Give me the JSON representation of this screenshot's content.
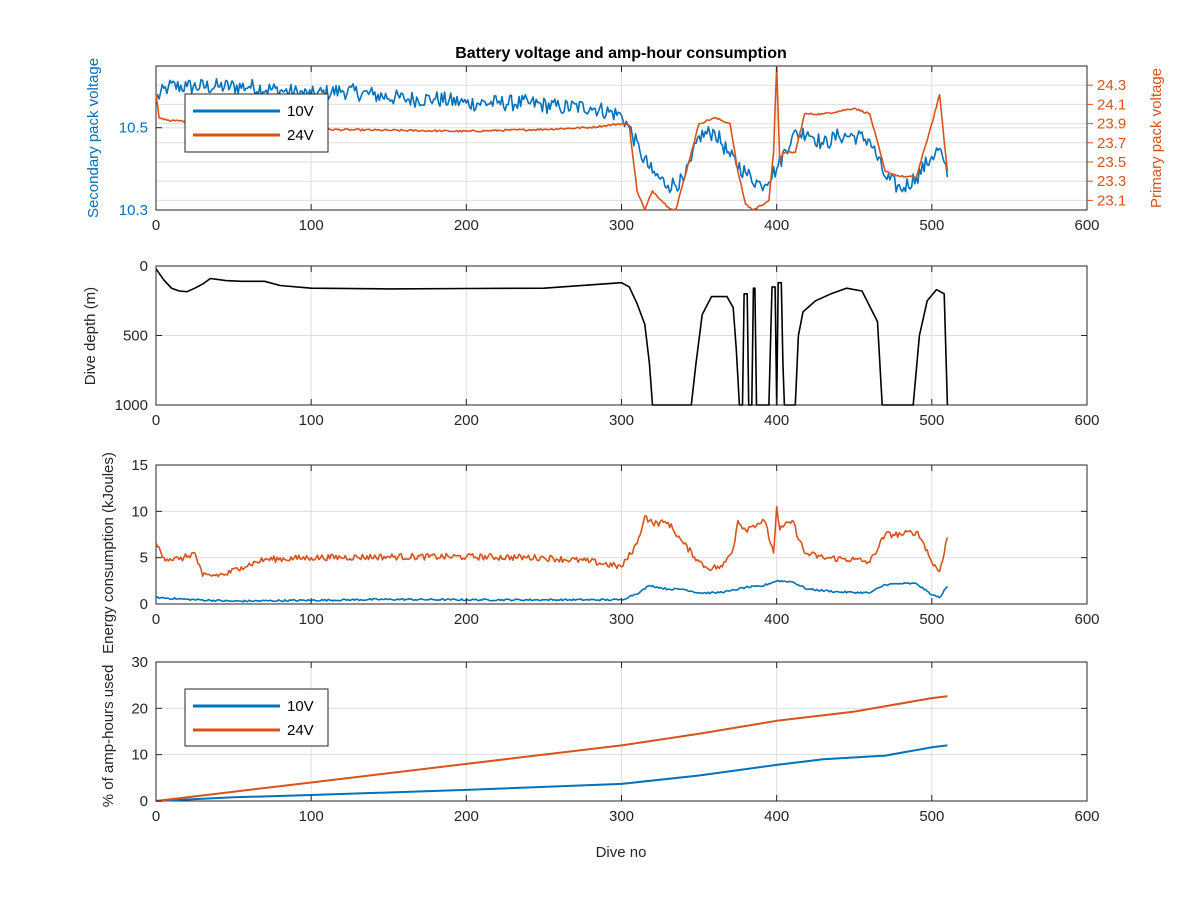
{
  "figure_title": "Battery voltage and amp-hour consumption",
  "colors": {
    "blue": "#0072bd",
    "orange": "#d95319",
    "black": "#000000",
    "grid": "#dfdfdf",
    "axis": "#262626"
  },
  "chart_data": [
    {
      "id": "voltage",
      "type": "line",
      "title": "Battery voltage and amp-hour consumption",
      "xlim": [
        0,
        600
      ],
      "xticks": [
        0,
        100,
        200,
        300,
        400,
        500,
        600
      ],
      "xlabel": "",
      "ylabel_left": "Secondary pack voltage",
      "ylim_left": [
        10.3,
        10.65
      ],
      "yticks_left": [
        10.3,
        10.5
      ],
      "ylabel_right": "Primary pack voltage",
      "ylim_right": [
        23.0,
        24.5
      ],
      "yticks_right": [
        23.1,
        23.3,
        23.5,
        23.7,
        23.9,
        24.1,
        24.3
      ],
      "grid": true,
      "legend": {
        "position": "top-left",
        "entries": [
          "10V",
          "24V"
        ]
      },
      "series": [
        {
          "name": "10V",
          "axis": "left",
          "color": "#0072bd",
          "points": [
            [
              0,
              10.57
            ],
            [
              8,
              10.6
            ],
            [
              20,
              10.6
            ],
            [
              40,
              10.6
            ],
            [
              60,
              10.6
            ],
            [
              80,
              10.59
            ],
            [
              100,
              10.58
            ],
            [
              120,
              10.59
            ],
            [
              140,
              10.58
            ],
            [
              160,
              10.57
            ],
            [
              180,
              10.57
            ],
            [
              200,
              10.56
            ],
            [
              220,
              10.56
            ],
            [
              240,
              10.56
            ],
            [
              260,
              10.55
            ],
            [
              280,
              10.55
            ],
            [
              300,
              10.53
            ],
            [
              305,
              10.5
            ],
            [
              312,
              10.44
            ],
            [
              320,
              10.39
            ],
            [
              330,
              10.36
            ],
            [
              340,
              10.37
            ],
            [
              345,
              10.42
            ],
            [
              350,
              10.48
            ],
            [
              360,
              10.49
            ],
            [
              370,
              10.43
            ],
            [
              380,
              10.39
            ],
            [
              390,
              10.36
            ],
            [
              400,
              10.4
            ],
            [
              410,
              10.48
            ],
            [
              420,
              10.49
            ],
            [
              430,
              10.46
            ],
            [
              440,
              10.48
            ],
            [
              450,
              10.48
            ],
            [
              460,
              10.47
            ],
            [
              470,
              10.38
            ],
            [
              480,
              10.35
            ],
            [
              490,
              10.38
            ],
            [
              500,
              10.43
            ],
            [
              505,
              10.45
            ],
            [
              510,
              10.38
            ]
          ],
          "noise": 0.02
        },
        {
          "name": "24V",
          "axis": "right",
          "color": "#d95319",
          "points": [
            [
              0,
              24.2
            ],
            [
              2,
              23.96
            ],
            [
              10,
              23.93
            ],
            [
              30,
              23.92
            ],
            [
              60,
              23.9
            ],
            [
              80,
              23.86
            ],
            [
              100,
              23.84
            ],
            [
              150,
              23.83
            ],
            [
              200,
              23.82
            ],
            [
              250,
              23.84
            ],
            [
              280,
              23.86
            ],
            [
              300,
              23.9
            ],
            [
              305,
              23.88
            ],
            [
              310,
              23.2
            ],
            [
              315,
              23.0
            ],
            [
              320,
              23.2
            ],
            [
              330,
              23.03
            ],
            [
              335,
              23.0
            ],
            [
              345,
              23.6
            ],
            [
              350,
              23.9
            ],
            [
              360,
              23.96
            ],
            [
              370,
              23.9
            ],
            [
              375,
              23.4
            ],
            [
              380,
              23.06
            ],
            [
              385,
              23.0
            ],
            [
              395,
              23.1
            ],
            [
              398,
              23.6
            ],
            [
              400,
              24.5
            ],
            [
              402,
              23.5
            ],
            [
              404,
              23.6
            ],
            [
              412,
              23.6
            ],
            [
              418,
              24.0
            ],
            [
              430,
              24.0
            ],
            [
              450,
              24.06
            ],
            [
              460,
              24.0
            ],
            [
              470,
              23.4
            ],
            [
              480,
              23.35
            ],
            [
              490,
              23.34
            ],
            [
              500,
              23.9
            ],
            [
              505,
              24.2
            ],
            [
              510,
              23.4
            ]
          ],
          "noise": 0.01
        }
      ]
    },
    {
      "id": "depth",
      "type": "line",
      "xlim": [
        0,
        600
      ],
      "xticks": [
        0,
        100,
        200,
        300,
        400,
        500,
        600
      ],
      "ylabel": "Dive depth (m)",
      "ylim": [
        0,
        1000
      ],
      "yticks": [
        0,
        500,
        1000
      ],
      "y_reversed": true,
      "grid": true,
      "series": [
        {
          "name": "",
          "color": "#000000",
          "points": [
            [
              0,
              20
            ],
            [
              5,
              100
            ],
            [
              10,
              160
            ],
            [
              15,
              180
            ],
            [
              20,
              185
            ],
            [
              25,
              160
            ],
            [
              30,
              130
            ],
            [
              35,
              90
            ],
            [
              45,
              105
            ],
            [
              55,
              110
            ],
            [
              70,
              110
            ],
            [
              80,
              140
            ],
            [
              100,
              160
            ],
            [
              150,
              165
            ],
            [
              200,
              162
            ],
            [
              250,
              160
            ],
            [
              300,
              120
            ],
            [
              305,
              150
            ],
            [
              310,
              270
            ],
            [
              315,
              420
            ],
            [
              318,
              700
            ],
            [
              320,
              1000
            ],
            [
              345,
              1000
            ],
            [
              348,
              700
            ],
            [
              352,
              350
            ],
            [
              358,
              220
            ],
            [
              368,
              220
            ],
            [
              372,
              300
            ],
            [
              374,
              600
            ],
            [
              376,
              1000
            ],
            [
              378,
              1000
            ],
            [
              379,
              200
            ],
            [
              381,
              200
            ],
            [
              382,
              1000
            ],
            [
              384,
              1000
            ],
            [
              385,
              160
            ],
            [
              386,
              160
            ],
            [
              387,
              1000
            ],
            [
              395,
              1000
            ],
            [
              397,
              150
            ],
            [
              399,
              150
            ],
            [
              400,
              1000
            ],
            [
              401,
              120
            ],
            [
              403,
              120
            ],
            [
              404,
              700
            ],
            [
              405,
              1000
            ],
            [
              412,
              1000
            ],
            [
              414,
              500
            ],
            [
              417,
              330
            ],
            [
              425,
              250
            ],
            [
              435,
              200
            ],
            [
              445,
              160
            ],
            [
              455,
              180
            ],
            [
              465,
              400
            ],
            [
              468,
              1000
            ],
            [
              488,
              1000
            ],
            [
              492,
              500
            ],
            [
              497,
              250
            ],
            [
              503,
              170
            ],
            [
              508,
              200
            ],
            [
              510,
              1000
            ]
          ],
          "noise": 0
        }
      ]
    },
    {
      "id": "energy",
      "type": "line",
      "xlim": [
        0,
        600
      ],
      "xticks": [
        0,
        100,
        200,
        300,
        400,
        500,
        600
      ],
      "ylabel": "Energy consumption (kJoules)",
      "ylim": [
        0,
        15
      ],
      "yticks": [
        0,
        5,
        10,
        15
      ],
      "grid": true,
      "series": [
        {
          "name": "10V",
          "color": "#0072bd",
          "points": [
            [
              0,
              0.7
            ],
            [
              20,
              0.5
            ],
            [
              50,
              0.3
            ],
            [
              100,
              0.4
            ],
            [
              150,
              0.5
            ],
            [
              200,
              0.45
            ],
            [
              250,
              0.45
            ],
            [
              300,
              0.45
            ],
            [
              305,
              0.8
            ],
            [
              312,
              1.3
            ],
            [
              318,
              2.0
            ],
            [
              330,
              1.6
            ],
            [
              340,
              1.6
            ],
            [
              350,
              1.2
            ],
            [
              360,
              1.2
            ],
            [
              370,
              1.4
            ],
            [
              380,
              1.8
            ],
            [
              390,
              1.9
            ],
            [
              400,
              2.5
            ],
            [
              410,
              2.4
            ],
            [
              420,
              1.6
            ],
            [
              440,
              1.3
            ],
            [
              460,
              1.2
            ],
            [
              470,
              2.1
            ],
            [
              480,
              2.2
            ],
            [
              490,
              2.2
            ],
            [
              500,
              1.0
            ],
            [
              505,
              0.7
            ],
            [
              510,
              1.9
            ]
          ],
          "noise": 0.1
        },
        {
          "name": "24V",
          "color": "#d95319",
          "points": [
            [
              0,
              6.6
            ],
            [
              5,
              5.0
            ],
            [
              15,
              4.8
            ],
            [
              25,
              5.5
            ],
            [
              30,
              3.0
            ],
            [
              45,
              3.2
            ],
            [
              55,
              4.0
            ],
            [
              70,
              4.8
            ],
            [
              100,
              5.0
            ],
            [
              150,
              5.1
            ],
            [
              200,
              5.1
            ],
            [
              250,
              5.0
            ],
            [
              280,
              4.6
            ],
            [
              300,
              4.0
            ],
            [
              310,
              6.5
            ],
            [
              315,
              9.5
            ],
            [
              320,
              8.7
            ],
            [
              330,
              8.8
            ],
            [
              340,
              6.5
            ],
            [
              350,
              4.6
            ],
            [
              355,
              3.9
            ],
            [
              365,
              4.0
            ],
            [
              372,
              6.0
            ],
            [
              375,
              9.0
            ],
            [
              380,
              8.0
            ],
            [
              385,
              8.5
            ],
            [
              392,
              9.0
            ],
            [
              398,
              5.5
            ],
            [
              400,
              10.5
            ],
            [
              402,
              8.0
            ],
            [
              410,
              9.0
            ],
            [
              418,
              5.5
            ],
            [
              430,
              5.0
            ],
            [
              450,
              4.8
            ],
            [
              460,
              4.5
            ],
            [
              470,
              7.5
            ],
            [
              480,
              7.5
            ],
            [
              490,
              7.8
            ],
            [
              495,
              6.5
            ],
            [
              500,
              4.5
            ],
            [
              505,
              3.5
            ],
            [
              510,
              7.2
            ]
          ],
          "noise": 0.35
        }
      ]
    },
    {
      "id": "amphours",
      "type": "line",
      "xlim": [
        0,
        600
      ],
      "xticks": [
        0,
        100,
        200,
        300,
        400,
        500,
        600
      ],
      "xlabel": "Dive no",
      "ylabel": "% of amp-hours used",
      "ylim": [
        0,
        30
      ],
      "yticks": [
        0,
        10,
        20,
        30
      ],
      "grid": true,
      "legend": {
        "position": "top-left",
        "entries": [
          "10V",
          "24V"
        ]
      },
      "series": [
        {
          "name": "10V",
          "color": "#0072bd",
          "points": [
            [
              0,
              0
            ],
            [
              50,
              0.8
            ],
            [
              100,
              1.3
            ],
            [
              200,
              2.4
            ],
            [
              300,
              3.7
            ],
            [
              350,
              5.5
            ],
            [
              400,
              7.8
            ],
            [
              430,
              9.0
            ],
            [
              470,
              9.8
            ],
            [
              500,
              11.6
            ],
            [
              510,
              12
            ]
          ],
          "noise": 0
        },
        {
          "name": "24V",
          "color": "#d95319",
          "points": [
            [
              0,
              0
            ],
            [
              50,
              2
            ],
            [
              100,
              4
            ],
            [
              200,
              8
            ],
            [
              300,
              12
            ],
            [
              350,
              14.5
            ],
            [
              400,
              17.3
            ],
            [
              450,
              19.3
            ],
            [
              500,
              22.2
            ],
            [
              510,
              22.6
            ]
          ],
          "noise": 0
        }
      ]
    }
  ]
}
